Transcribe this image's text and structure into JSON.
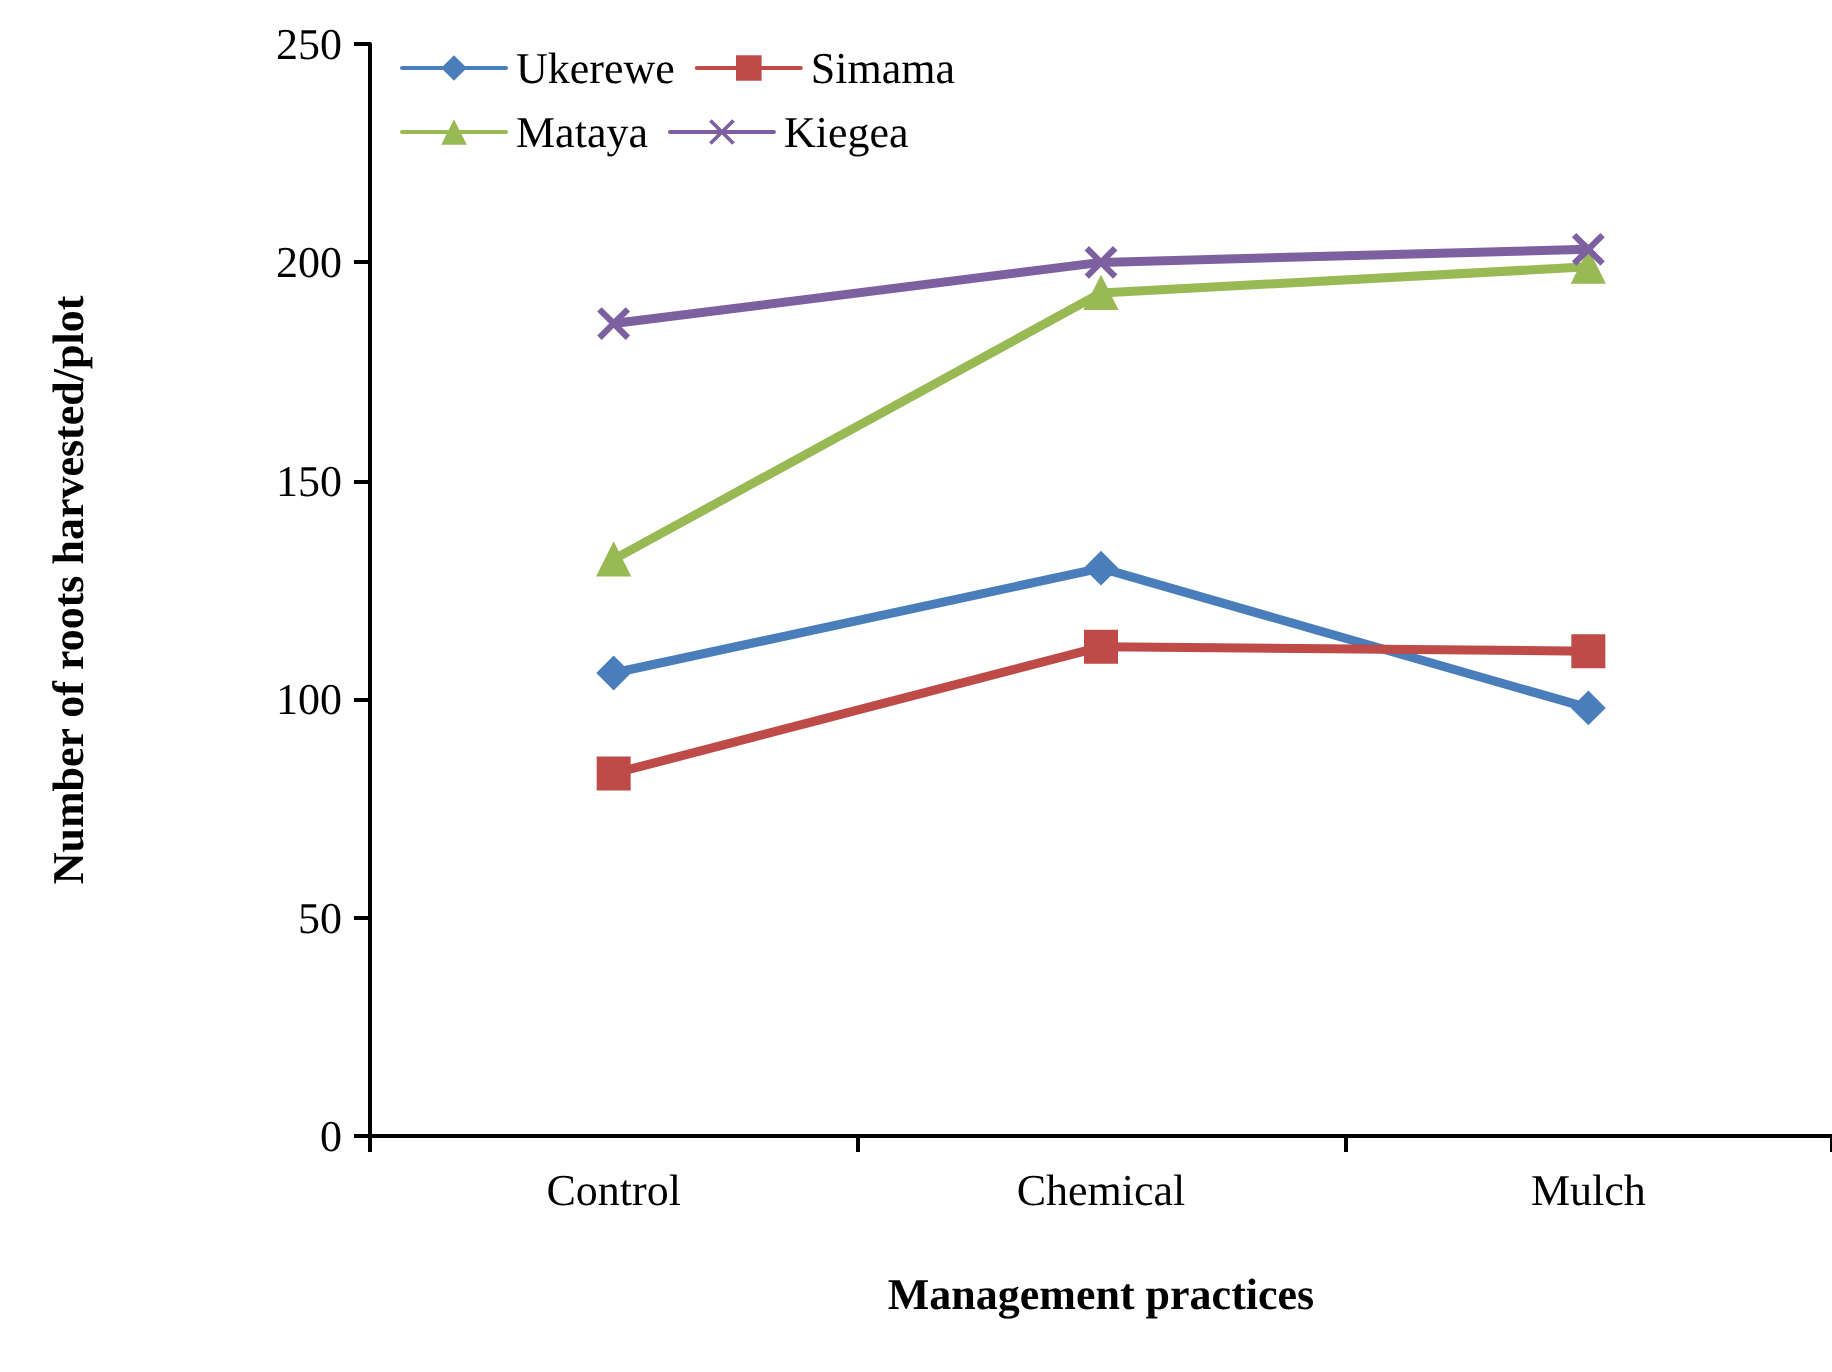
{
  "chart_data": {
    "type": "line",
    "xlabel": "Management practices",
    "ylabel": "Number of roots harvested/plot",
    "categories": [
      "Control",
      "Chemical",
      "Mulch"
    ],
    "series": [
      {
        "name": "Ukerewe",
        "color": "#4a7ebb",
        "marker": "diamond",
        "values": [
          106,
          130,
          98
        ]
      },
      {
        "name": "Simama",
        "color": "#be4b48",
        "marker": "square",
        "values": [
          83,
          112,
          111
        ]
      },
      {
        "name": "Mataya",
        "color": "#98b954",
        "marker": "triangle",
        "values": [
          132,
          193,
          199
        ]
      },
      {
        "name": "Kiegea",
        "color": "#7d60a0",
        "marker": "cross",
        "values": [
          186,
          200,
          203
        ]
      }
    ],
    "ylim": [
      0,
      250
    ],
    "yticks": [
      0,
      50,
      100,
      150,
      200,
      250
    ],
    "grid": false,
    "legend": "top left",
    "line_style": "solid"
  }
}
